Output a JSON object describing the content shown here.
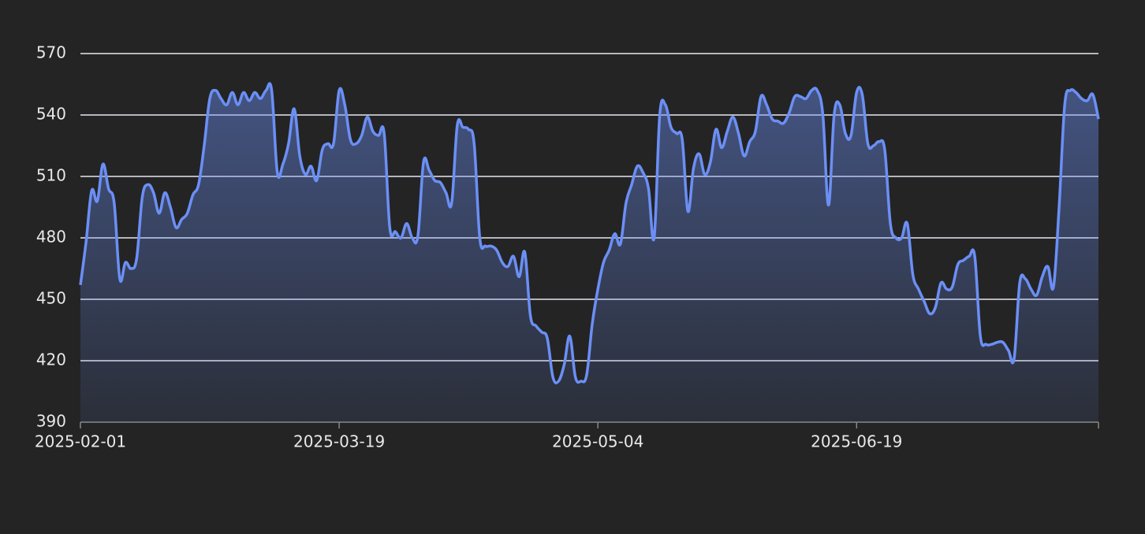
{
  "chart_data": {
    "type": "line",
    "x": [
      "2025-02-01",
      "2025-02-02",
      "2025-02-03",
      "2025-02-04",
      "2025-02-05",
      "2025-02-06",
      "2025-02-07",
      "2025-02-08",
      "2025-02-09",
      "2025-02-10",
      "2025-02-11",
      "2025-02-12",
      "2025-02-13",
      "2025-02-14",
      "2025-02-15",
      "2025-02-16",
      "2025-02-17",
      "2025-02-18",
      "2025-02-19",
      "2025-02-20",
      "2025-02-21",
      "2025-02-22",
      "2025-02-23",
      "2025-02-24",
      "2025-02-25",
      "2025-02-26",
      "2025-02-27",
      "2025-02-28",
      "2025-03-01",
      "2025-03-02",
      "2025-03-03",
      "2025-03-04",
      "2025-03-05",
      "2025-03-06",
      "2025-03-07",
      "2025-03-08",
      "2025-03-09",
      "2025-03-10",
      "2025-03-11",
      "2025-03-12",
      "2025-03-13",
      "2025-03-14",
      "2025-03-15",
      "2025-03-16",
      "2025-03-17",
      "2025-03-18",
      "2025-03-19",
      "2025-03-20",
      "2025-03-21",
      "2025-03-22",
      "2025-03-23",
      "2025-03-24",
      "2025-03-25",
      "2025-03-26",
      "2025-03-27",
      "2025-03-28",
      "2025-03-29",
      "2025-03-30",
      "2025-03-31",
      "2025-04-01",
      "2025-04-02",
      "2025-04-03",
      "2025-04-04",
      "2025-04-05",
      "2025-04-06",
      "2025-04-07",
      "2025-04-08",
      "2025-04-09",
      "2025-04-10",
      "2025-04-11",
      "2025-04-12",
      "2025-04-13",
      "2025-04-14",
      "2025-04-15",
      "2025-04-16",
      "2025-04-17",
      "2025-04-18",
      "2025-04-19",
      "2025-04-20",
      "2025-04-21",
      "2025-04-22",
      "2025-04-23",
      "2025-04-24",
      "2025-04-25",
      "2025-04-26",
      "2025-04-27",
      "2025-04-28",
      "2025-04-29",
      "2025-04-30",
      "2025-05-01",
      "2025-05-02",
      "2025-05-03",
      "2025-05-04",
      "2025-05-05",
      "2025-05-06",
      "2025-05-07",
      "2025-05-08",
      "2025-05-09",
      "2025-05-10",
      "2025-05-11",
      "2025-05-12",
      "2025-05-13",
      "2025-05-14",
      "2025-05-15",
      "2025-05-16",
      "2025-05-17",
      "2025-05-18",
      "2025-05-19",
      "2025-05-20",
      "2025-05-21",
      "2025-05-22",
      "2025-05-23",
      "2025-05-24",
      "2025-05-25",
      "2025-05-26",
      "2025-05-27",
      "2025-05-28",
      "2025-05-29",
      "2025-05-30",
      "2025-05-31",
      "2025-06-01",
      "2025-06-02",
      "2025-06-03",
      "2025-06-04",
      "2025-06-05",
      "2025-06-06",
      "2025-06-07",
      "2025-06-08",
      "2025-06-09",
      "2025-06-10",
      "2025-06-11",
      "2025-06-12",
      "2025-06-13",
      "2025-06-14",
      "2025-06-15",
      "2025-06-16",
      "2025-06-17",
      "2025-06-18",
      "2025-06-19",
      "2025-06-20",
      "2025-06-21",
      "2025-06-22",
      "2025-06-23",
      "2025-06-24",
      "2025-06-25",
      "2025-06-26",
      "2025-06-27",
      "2025-06-28",
      "2025-06-29",
      "2025-06-30",
      "2025-07-01",
      "2025-07-02",
      "2025-07-03",
      "2025-07-04",
      "2025-07-05",
      "2025-07-06",
      "2025-07-07",
      "2025-07-08",
      "2025-07-09",
      "2025-07-10",
      "2025-07-11",
      "2025-07-12",
      "2025-07-13",
      "2025-07-14",
      "2025-07-15",
      "2025-07-16",
      "2025-07-17",
      "2025-07-18",
      "2025-07-19",
      "2025-07-20",
      "2025-07-21",
      "2025-07-22",
      "2025-07-23",
      "2025-07-24",
      "2025-07-25",
      "2025-07-26",
      "2025-07-27",
      "2025-07-28",
      "2025-07-29",
      "2025-07-30",
      "2025-07-31",
      "2025-08-01"
    ],
    "values": [
      457,
      478,
      503,
      498,
      516,
      504,
      497,
      460,
      468,
      465,
      470,
      500,
      506,
      502,
      492,
      502,
      495,
      485,
      489,
      492,
      501,
      506,
      525,
      548,
      552,
      548,
      545,
      551,
      545,
      551,
      547,
      551,
      548,
      552,
      552,
      512,
      516,
      526,
      543,
      520,
      511,
      515,
      508,
      523,
      526,
      526,
      552,
      545,
      528,
      526,
      530,
      539,
      532,
      530,
      531,
      485,
      483,
      480,
      487,
      480,
      481,
      517,
      513,
      508,
      507,
      502,
      497,
      535,
      534,
      533,
      526,
      480,
      476,
      476,
      474,
      468,
      466,
      471,
      461,
      473,
      442,
      437,
      434,
      431,
      412,
      410,
      418,
      432,
      412,
      410,
      413,
      438,
      455,
      468,
      474,
      482,
      477,
      497,
      506,
      515,
      512,
      504,
      480,
      540,
      545,
      534,
      531,
      528,
      493,
      514,
      521,
      511,
      517,
      533,
      524,
      532,
      539,
      531,
      520,
      527,
      532,
      549,
      545,
      538,
      537,
      536,
      541,
      549,
      549,
      548,
      552,
      552,
      540,
      496,
      540,
      545,
      531,
      530,
      551,
      550,
      526,
      525,
      527,
      523,
      487,
      480,
      480,
      487,
      462,
      455,
      449,
      443,
      446,
      458,
      455,
      456,
      467,
      469,
      471,
      471,
      432,
      428,
      428,
      429,
      429,
      425,
      421,
      458,
      460,
      455,
      452,
      461,
      466,
      456,
      495,
      545,
      552,
      551,
      548,
      547,
      550,
      538
    ],
    "color": "#6b8ff5",
    "xticks": [
      "2025-02-01",
      "2025-03-19",
      "2025-05-04",
      "2025-06-19"
    ],
    "ylim": [
      390,
      570
    ],
    "yticks": [
      390,
      420,
      450,
      480,
      510,
      540,
      570
    ],
    "grid": true
  }
}
